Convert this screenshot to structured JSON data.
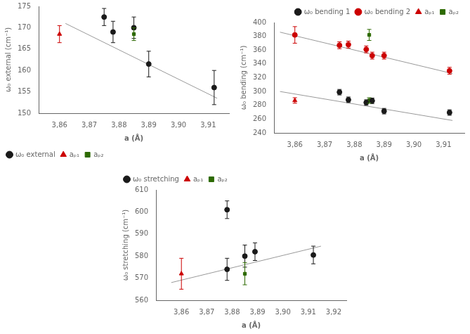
{
  "chart_data": [
    {
      "type": "scatter",
      "x_label": "a (Å)",
      "y_label": "ω₀ external (cm⁻¹)",
      "xlim": [
        3.853,
        3.917
      ],
      "ylim": [
        150,
        175
      ],
      "xticks": [
        {
          "value": 3.86,
          "label": "3,86"
        },
        {
          "value": 3.87,
          "label": "3,87"
        },
        {
          "value": 3.88,
          "label": "3,88"
        },
        {
          "value": 3.89,
          "label": "3,89"
        },
        {
          "value": 3.9,
          "label": "3,90"
        },
        {
          "value": 3.91,
          "label": "3,91"
        }
      ],
      "yticks": [
        150,
        155,
        160,
        165,
        170,
        175
      ],
      "grid": false,
      "legend": "lower left",
      "series": [
        {
          "name": "ω₀ external",
          "color": "#1a1a1a",
          "marker": "circle",
          "x": [
            3.875,
            3.878,
            3.885,
            3.89,
            3.912
          ],
          "values": [
            172.5,
            169.0,
            170.0,
            161.5,
            156.0
          ],
          "yerr": [
            2.0,
            2.5,
            2.5,
            3.0,
            4.0
          ]
        },
        {
          "name": "aₚ₁",
          "color": "#cc0000",
          "marker": "triangle",
          "x": [
            3.86
          ],
          "values": [
            168.5
          ],
          "yerr": [
            2.0
          ]
        },
        {
          "name": "aₚ₂",
          "color": "#2d6a00",
          "marker": "square",
          "x": [
            3.885
          ],
          "values": [
            168.5
          ],
          "yerr": [
            1.5
          ]
        },
        {
          "type": "line",
          "color": "#999999",
          "x": [
            3.862,
            3.913
          ],
          "values": [
            171.0,
            153.5
          ]
        }
      ]
    },
    {
      "type": "scatter",
      "x_label": "a (Å)",
      "y_label": "ω₀ bending (cm⁻¹)",
      "xlim": [
        3.853,
        3.917
      ],
      "ylim": [
        240,
        400
      ],
      "xticks": [
        {
          "value": 3.86,
          "label": "3,86"
        },
        {
          "value": 3.87,
          "label": "3,87"
        },
        {
          "value": 3.88,
          "label": "3,88"
        },
        {
          "value": 3.89,
          "label": "3,89"
        },
        {
          "value": 3.9,
          "label": "3,90"
        },
        {
          "value": 3.91,
          "label": "3,91"
        }
      ],
      "yticks": [
        240,
        260,
        280,
        300,
        320,
        340,
        360,
        380,
        400
      ],
      "grid": false,
      "legend": "upper right",
      "series": [
        {
          "name": "ω₀ bending 1",
          "color": "#1a1a1a",
          "marker": "circle",
          "x": [
            3.875,
            3.878,
            3.884,
            3.886,
            3.89,
            3.912
          ],
          "values": [
            299.0,
            288.0,
            284.0,
            286.5,
            271.5,
            269.5
          ],
          "yerr": [
            4.0,
            4.0,
            4.0,
            4.0,
            4.0,
            4.0
          ]
        },
        {
          "name": "ω₀ bending 2",
          "color": "#cc0000",
          "marker": "circle",
          "x": [
            3.86,
            3.875,
            3.878,
            3.884,
            3.886,
            3.89,
            3.912
          ],
          "values": [
            382.0,
            367.0,
            368.0,
            361.0,
            352.0,
            352.0,
            330.0
          ],
          "yerr": [
            12.0,
            5.0,
            5.0,
            5.0,
            5.0,
            5.0,
            5.0
          ]
        },
        {
          "name": "aₚ₁",
          "color": "#cc0000",
          "marker": "triangle",
          "x": [
            3.86
          ],
          "values": [
            287.0
          ],
          "yerr": [
            4.0
          ]
        },
        {
          "name": "aₚ₂",
          "color": "#2d6a00",
          "marker": "square",
          "x": [
            3.885,
            3.885
          ],
          "values": [
            287.0,
            382.0
          ],
          "yerr": [
            4.0,
            8.0
          ]
        },
        {
          "type": "line",
          "color": "#999999",
          "x": [
            3.855,
            3.913
          ],
          "values": [
            300.0,
            258.0
          ]
        },
        {
          "type": "line",
          "color": "#999999",
          "x": [
            3.855,
            3.913
          ],
          "values": [
            386.0,
            326.0
          ]
        }
      ]
    },
    {
      "type": "scatter",
      "x_label": "a (Å)",
      "y_label": "ω₀ stretching (cm⁻¹)",
      "xlim": [
        3.85,
        3.925
      ],
      "ylim": [
        560,
        610
      ],
      "xticks": [
        {
          "value": 3.86,
          "label": "3,86"
        },
        {
          "value": 3.87,
          "label": "3,87"
        },
        {
          "value": 3.88,
          "label": "3,88"
        },
        {
          "value": 3.89,
          "label": "3,89"
        },
        {
          "value": 3.9,
          "label": "3,90"
        },
        {
          "value": 3.91,
          "label": "3,91"
        },
        {
          "value": 3.92,
          "label": "3,92"
        }
      ],
      "yticks": [
        560,
        570,
        580,
        590,
        600,
        610
      ],
      "grid": false,
      "legend": "upper left",
      "series": [
        {
          "name": "ω₀ stretching",
          "color": "#1a1a1a",
          "marker": "circle",
          "x": [
            3.878,
            3.878,
            3.885,
            3.889,
            3.912
          ],
          "values": [
            601.0,
            574.0,
            580.0,
            582.0,
            580.5
          ],
          "yerr": [
            4.0,
            5.0,
            5.0,
            4.0,
            4.0
          ]
        },
        {
          "name": "aₚ₁",
          "color": "#cc0000",
          "marker": "triangle",
          "x": [
            3.86
          ],
          "values": [
            572.0
          ],
          "yerr": [
            7.0
          ]
        },
        {
          "name": "aₚ₂",
          "color": "#2d6a00",
          "marker": "square",
          "x": [
            3.885
          ],
          "values": [
            572.0
          ],
          "yerr": [
            5.0
          ]
        },
        {
          "type": "line",
          "color": "#999999",
          "x": [
            3.856,
            3.915
          ],
          "values": [
            568.0,
            584.5
          ]
        }
      ]
    }
  ]
}
